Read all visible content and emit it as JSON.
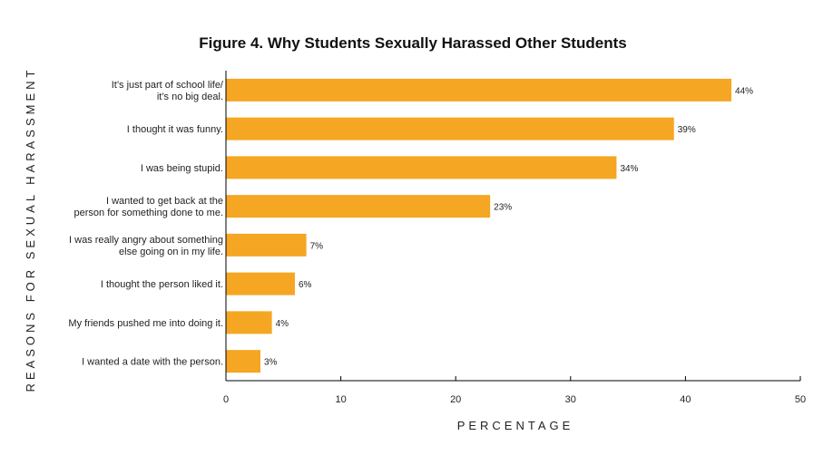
{
  "chart_data": {
    "type": "bar",
    "orientation": "horizontal",
    "title": "Figure 4. Why Students Sexually Harassed Other Students",
    "xlabel": "PERCENTAGE",
    "ylabel": "REASONS FOR SEXUAL HARASSMENT",
    "xlim": [
      0,
      50
    ],
    "xticks": [
      0,
      10,
      20,
      30,
      40,
      50
    ],
    "grid": false,
    "bar_color": "#F5A623",
    "categories": [
      [
        "It’s just part of school life/",
        "it’s no big deal."
      ],
      [
        "I thought it was funny."
      ],
      [
        "I was being stupid."
      ],
      [
        "I wanted to get back at the",
        "person for something done to me."
      ],
      [
        "I was really angry about something",
        "else going on in my life."
      ],
      [
        "I thought the person liked it."
      ],
      [
        "My friends pushed me into doing it."
      ],
      [
        "I wanted a date with the person."
      ]
    ],
    "values": [
      44,
      39,
      34,
      23,
      7,
      6,
      4,
      3
    ],
    "value_labels": [
      "44%",
      "39%",
      "34%",
      "23%",
      "7%",
      "6%",
      "4%",
      "3%"
    ]
  }
}
